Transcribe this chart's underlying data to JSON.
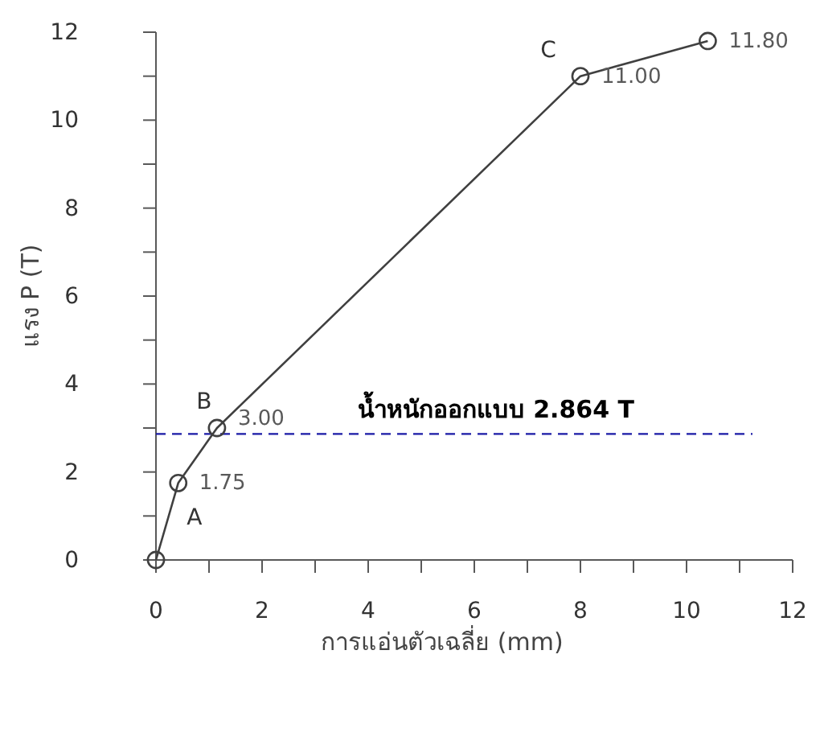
{
  "chart_data": {
    "type": "line",
    "xlabel": "การแอ่นตัวเฉลี่ย (mm)",
    "ylabel": "แรง P (T)",
    "x": [
      0,
      0.42,
      1.15,
      8.0,
      10.4
    ],
    "series": [
      {
        "color": "#404040",
        "values": [
          0,
          1.75,
          3.0,
          11.0,
          11.8
        ],
        "value_labels": [
          null,
          "1.75",
          "3.00",
          "11.00",
          "11.80"
        ]
      }
    ],
    "marker": "circle",
    "line_style": "solid",
    "grid": false,
    "xlim": [
      0,
      12
    ],
    "ylim": [
      0,
      12
    ],
    "xticks": [
      0,
      {
        "value": 1,
        "label": null
      },
      2,
      {
        "value": 3,
        "label": null
      },
      4,
      {
        "value": 5,
        "label": null
      },
      6,
      {
        "value": 7,
        "label": null
      },
      8,
      {
        "value": 9,
        "label": null
      },
      10,
      {
        "value": 11,
        "label": null
      },
      12
    ],
    "yticks": [
      0,
      {
        "value": 1,
        "label": null
      },
      2,
      {
        "value": 3,
        "label": null
      },
      4,
      {
        "value": 5,
        "label": null
      },
      6,
      {
        "value": 7,
        "label": null
      },
      8,
      {
        "value": 9,
        "label": null
      },
      10,
      {
        "value": 11,
        "label": null
      },
      12
    ],
    "ref_lines": [
      {
        "axis": "y",
        "value": 2.864,
        "label": "น้ำหนักออกแบบ 2.864 T",
        "color": "#1a1aa6",
        "line_style": "dashed"
      }
    ],
    "annotations": [
      {
        "text": "A",
        "x": 0.42,
        "y": 1.75
      },
      {
        "text": "B",
        "x": 1.15,
        "y": 3.0
      },
      {
        "text": "C",
        "x": 8.0,
        "y": 11.0
      }
    ]
  }
}
